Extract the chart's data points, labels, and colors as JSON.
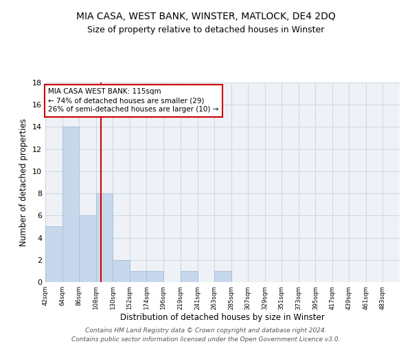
{
  "title": "MIA CASA, WEST BANK, WINSTER, MATLOCK, DE4 2DQ",
  "subtitle": "Size of property relative to detached houses in Winster",
  "xlabel": "Distribution of detached houses by size in Winster",
  "ylabel": "Number of detached properties",
  "bar_edges": [
    42,
    64,
    86,
    108,
    130,
    152,
    174,
    196,
    219,
    241,
    263,
    285,
    307,
    329,
    351,
    373,
    395,
    417,
    439,
    461,
    483
  ],
  "bar_heights": [
    5,
    14,
    6,
    8,
    2,
    1,
    1,
    0,
    1,
    0,
    1,
    0,
    0,
    0,
    0,
    0,
    0,
    0,
    0,
    0
  ],
  "bar_color": "#c8d8ec",
  "bar_edge_color": "#a8c0d8",
  "vline_x": 115,
  "vline_color": "#cc0000",
  "annotation_text": "MIA CASA WEST BANK: 115sqm\n← 74% of detached houses are smaller (29)\n26% of semi-detached houses are larger (10) →",
  "annotation_box_color": "#ffffff",
  "annotation_box_edge": "#cc0000",
  "ylim": [
    0,
    18
  ],
  "yticks": [
    0,
    2,
    4,
    6,
    8,
    10,
    12,
    14,
    16,
    18
  ],
  "tick_labels": [
    "42sqm",
    "64sqm",
    "86sqm",
    "108sqm",
    "130sqm",
    "152sqm",
    "174sqm",
    "196sqm",
    "219sqm",
    "241sqm",
    "263sqm",
    "285sqm",
    "307sqm",
    "329sqm",
    "351sqm",
    "373sqm",
    "395sqm",
    "417sqm",
    "439sqm",
    "461sqm",
    "483sqm"
  ],
  "footer_text": "Contains HM Land Registry data © Crown copyright and database right 2024.\nContains public sector information licensed under the Open Government Licence v3.0.",
  "bg_color": "#eef2f7",
  "grid_color": "#d0d8e4"
}
